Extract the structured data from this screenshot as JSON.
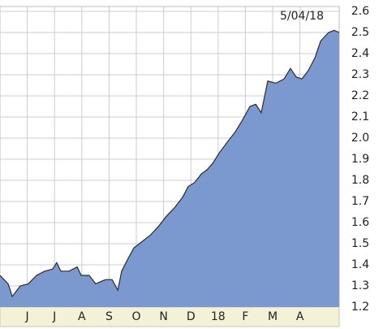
{
  "chart_data": {
    "type": "area",
    "annotation": "5/04/18",
    "color": "#7b98cf",
    "line_color": "#2b2b2b",
    "grid": true,
    "x": [
      0,
      0.3,
      0.45,
      0.74,
      1.04,
      1.34,
      1.64,
      1.93,
      2.08,
      2.23,
      2.53,
      2.83,
      2.98,
      3.27,
      3.51,
      3.87,
      4.11,
      4.32,
      4.46,
      4.7,
      4.91,
      5.21,
      5.51,
      5.8,
      6.1,
      6.4,
      6.7,
      6.9,
      7.14,
      7.38,
      7.59,
      7.8,
      8.04,
      8.33,
      8.63,
      8.87,
      9.17,
      9.38,
      9.58,
      9.82,
      10.12,
      10.42,
      10.65,
      10.86,
      11.07,
      11.31,
      11.55,
      11.76,
      12.05,
      12.26,
      12.44
    ],
    "values": [
      1.35,
      1.31,
      1.25,
      1.3,
      1.31,
      1.35,
      1.37,
      1.38,
      1.41,
      1.37,
      1.37,
      1.39,
      1.35,
      1.35,
      1.31,
      1.33,
      1.33,
      1.28,
      1.37,
      1.43,
      1.48,
      1.51,
      1.54,
      1.58,
      1.63,
      1.67,
      1.72,
      1.77,
      1.79,
      1.83,
      1.85,
      1.88,
      1.93,
      1.98,
      2.03,
      2.08,
      2.15,
      2.16,
      2.12,
      2.27,
      2.26,
      2.28,
      2.33,
      2.29,
      2.28,
      2.32,
      2.38,
      2.46,
      2.5,
      2.51,
      2.5
    ],
    "xlim": [
      0,
      12.44
    ],
    "xticks": [
      {
        "value": 1,
        "label": "J"
      },
      {
        "value": 2,
        "label": "J"
      },
      {
        "value": 3,
        "label": "A"
      },
      {
        "value": 4,
        "label": "S"
      },
      {
        "value": 5,
        "label": "O"
      },
      {
        "value": 6,
        "label": "N"
      },
      {
        "value": 7,
        "label": "D"
      },
      {
        "value": 8,
        "label": "18"
      },
      {
        "value": 9,
        "label": "F"
      },
      {
        "value": 10,
        "label": "M"
      },
      {
        "value": 11,
        "label": "A"
      }
    ],
    "ylim": [
      1.2,
      2.6
    ],
    "yticks": [
      1.2,
      1.3,
      1.4,
      1.5,
      1.6,
      1.7,
      1.8,
      1.9,
      {
        "value": 2,
        "label": "2.0"
      },
      2.1,
      2.2,
      2.3,
      2.4,
      2.5,
      2.6
    ]
  }
}
